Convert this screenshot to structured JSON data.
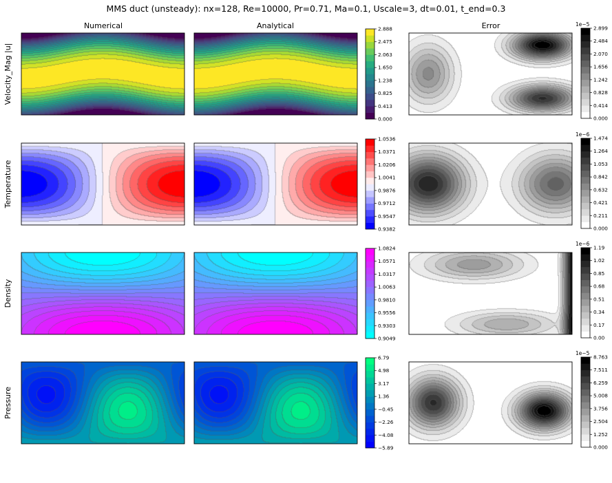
{
  "chart_data": {
    "type": "heatmap",
    "title": "MMS duct (unsteady): nx=128, Re=10000, Pr=0.71, Ma=0.1, Uscale=3, dt=0.01, t_end=0.3",
    "columns": [
      "Numerical",
      "Analytical",
      "Error"
    ],
    "rows": [
      {
        "label": "Velocity_Mag |u|",
        "field": "velocity",
        "colormap": "viridis",
        "ticks": [
          "0.000",
          "0.413",
          "0.825",
          "1.238",
          "1.650",
          "2.063",
          "2.475",
          "2.888"
        ],
        "range": [
          0,
          2.888
        ],
        "error": {
          "scale_label": "1e−5",
          "ticks": [
            "0.000",
            "0.414",
            "0.828",
            "1.242",
            "1.656",
            "2.070",
            "2.484",
            "2.899"
          ],
          "range": [
            0,
            2.899
          ]
        }
      },
      {
        "label": "Temperature",
        "field": "temperature",
        "colormap": "bwr",
        "ticks": [
          "0.9382",
          "0.9547",
          "0.9712",
          "0.9876",
          "1.0041",
          "1.0206",
          "1.0371",
          "1.0536"
        ],
        "range": [
          0.9382,
          1.0536
        ],
        "error": {
          "scale_label": "1e−6",
          "ticks": [
            "0.000",
            "0.211",
            "0.421",
            "0.632",
            "0.842",
            "1.053",
            "1.264",
            "1.474"
          ],
          "range": [
            0,
            1.474
          ]
        }
      },
      {
        "label": "Density",
        "field": "density",
        "colormap": "cool",
        "ticks": [
          "0.9049",
          "0.9303",
          "0.9556",
          "0.9810",
          "1.0063",
          "1.0317",
          "1.0571",
          "1.0824"
        ],
        "range": [
          0.9049,
          1.0824
        ],
        "error": {
          "scale_label": "1e−6",
          "ticks": [
            "0.00",
            "0.17",
            "0.34",
            "0.51",
            "0.68",
            "0.85",
            "1.02",
            "1.19"
          ],
          "range": [
            0,
            1.19
          ]
        }
      },
      {
        "label": "Pressure",
        "field": "pressure",
        "colormap": "winter",
        "ticks": [
          "−5.89",
          "−4.08",
          "−2.26",
          "−0.45",
          "1.36",
          "3.17",
          "4.98",
          "6.79"
        ],
        "range": [
          -5.89,
          6.79
        ],
        "error": {
          "scale_label": "1e−5",
          "ticks": [
            "0.000",
            "1.252",
            "2.504",
            "3.756",
            "5.008",
            "6.259",
            "7.511",
            "8.763"
          ],
          "range": [
            0,
            8.763
          ]
        }
      }
    ],
    "error_colormap": "Greys",
    "grid": false,
    "legend": "colorbar-right"
  }
}
